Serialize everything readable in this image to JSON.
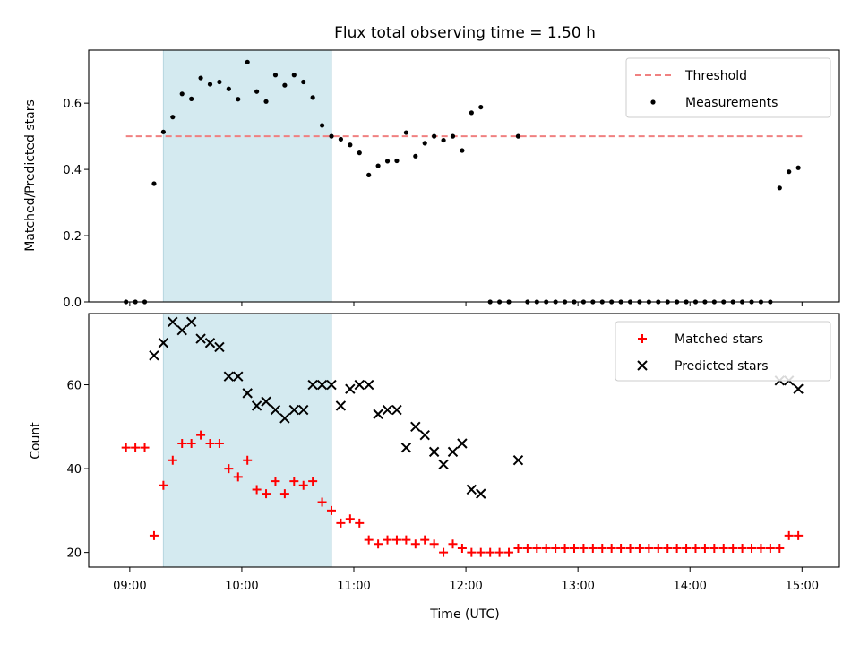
{
  "title": "Flux total observing time = 1.50 h",
  "chart_data": [
    {
      "type": "scatter",
      "ylabel": "Matched/Predicted stars",
      "ylim": [
        0,
        0.76
      ],
      "xlim": [
        "08:38",
        "15:20"
      ],
      "yticks": [
        0.0,
        0.2,
        0.4,
        0.6
      ],
      "ytick_labels": [
        "0.0",
        "0.2",
        "0.4",
        "0.6"
      ],
      "shaded_interval": {
        "from": "09:18",
        "to": "10:48",
        "color": "#d4eaf0"
      },
      "legend": {
        "placement": "top-right",
        "entries": [
          "Threshold",
          "Measurements"
        ]
      },
      "threshold": {
        "name": "Threshold",
        "value": 0.5,
        "from": "08:58",
        "to": "15:00",
        "color": "#f08080"
      },
      "series": [
        {
          "name": "Measurements",
          "color": "#000000",
          "points": [
            [
              "08:58",
              0
            ],
            [
              "09:03",
              0
            ],
            [
              "09:08",
              0
            ],
            [
              "09:13",
              0.357
            ],
            [
              "09:18",
              0.513
            ],
            [
              "09:23",
              0.558
            ],
            [
              "09:28",
              0.628
            ],
            [
              "09:33",
              0.613
            ],
            [
              "09:38",
              0.676
            ],
            [
              "09:43",
              0.657
            ],
            [
              "09:48",
              0.664
            ],
            [
              "09:53",
              0.643
            ],
            [
              "09:58",
              0.612
            ],
            [
              "10:03",
              0.724
            ],
            [
              "10:08",
              0.635
            ],
            [
              "10:13",
              0.605
            ],
            [
              "10:18",
              0.685
            ],
            [
              "10:23",
              0.654
            ],
            [
              "10:28",
              0.685
            ],
            [
              "10:33",
              0.664
            ],
            [
              "10:38",
              0.617
            ],
            [
              "10:43",
              0.533
            ],
            [
              "10:48",
              0.5
            ],
            [
              "10:53",
              0.491
            ],
            [
              "10:58",
              0.474
            ],
            [
              "11:03",
              0.45
            ],
            [
              "11:08",
              0.383
            ],
            [
              "11:13",
              0.411
            ],
            [
              "11:18",
              0.425
            ],
            [
              "11:23",
              0.426
            ],
            [
              "11:28",
              0.511
            ],
            [
              "11:33",
              0.44
            ],
            [
              "11:38",
              0.479
            ],
            [
              "11:43",
              0.5
            ],
            [
              "11:48",
              0.488
            ],
            [
              "11:53",
              0.5
            ],
            [
              "11:58",
              0.457
            ],
            [
              "12:03",
              0.571
            ],
            [
              "12:08",
              0.588
            ],
            [
              "12:13",
              0
            ],
            [
              "12:18",
              0
            ],
            [
              "12:23",
              0
            ],
            [
              "12:28",
              0.5
            ],
            [
              "12:33",
              0
            ],
            [
              "12:38",
              0
            ],
            [
              "12:43",
              0
            ],
            [
              "12:48",
              0
            ],
            [
              "12:53",
              0
            ],
            [
              "12:58",
              0
            ],
            [
              "13:03",
              0
            ],
            [
              "13:08",
              0
            ],
            [
              "13:13",
              0
            ],
            [
              "13:18",
              0
            ],
            [
              "13:23",
              0
            ],
            [
              "13:28",
              0
            ],
            [
              "13:33",
              0
            ],
            [
              "13:38",
              0
            ],
            [
              "13:43",
              0
            ],
            [
              "13:48",
              0
            ],
            [
              "13:53",
              0
            ],
            [
              "13:58",
              0
            ],
            [
              "14:03",
              0
            ],
            [
              "14:08",
              0
            ],
            [
              "14:13",
              0
            ],
            [
              "14:18",
              0
            ],
            [
              "14:23",
              0
            ],
            [
              "14:28",
              0
            ],
            [
              "14:33",
              0
            ],
            [
              "14:38",
              0
            ],
            [
              "14:43",
              0
            ],
            [
              "14:48",
              0.344
            ],
            [
              "14:53",
              0.393
            ],
            [
              "14:58",
              0.405
            ]
          ]
        }
      ]
    },
    {
      "type": "scatter",
      "xlabel": "Time (UTC)",
      "ylabel": "Count",
      "ylim": [
        16.5,
        77
      ],
      "xlim": [
        "08:38",
        "15:20"
      ],
      "yticks": [
        20,
        40,
        60
      ],
      "ytick_labels": [
        "20",
        "40",
        "60"
      ],
      "xticks": [
        "09:00",
        "10:00",
        "11:00",
        "12:00",
        "13:00",
        "14:00",
        "15:00"
      ],
      "xtick_labels": [
        "09:00",
        "10:00",
        "11:00",
        "12:00",
        "13:00",
        "14:00",
        "15:00"
      ],
      "shaded_interval": {
        "from": "09:18",
        "to": "10:48",
        "color": "#d4eaf0"
      },
      "legend": {
        "placement": "top-right",
        "entries": [
          "Matched stars",
          "Predicted stars"
        ]
      },
      "series": [
        {
          "name": "Matched stars",
          "marker": "plus",
          "color": "#ff0000",
          "points": [
            [
              "08:58",
              45
            ],
            [
              "09:03",
              45
            ],
            [
              "09:08",
              45
            ],
            [
              "09:13",
              24
            ],
            [
              "09:18",
              36
            ],
            [
              "09:23",
              42
            ],
            [
              "09:28",
              46
            ],
            [
              "09:33",
              46
            ],
            [
              "09:38",
              48
            ],
            [
              "09:43",
              46
            ],
            [
              "09:48",
              46
            ],
            [
              "09:53",
              40
            ],
            [
              "09:58",
              38
            ],
            [
              "10:03",
              42
            ],
            [
              "10:08",
              35
            ],
            [
              "10:13",
              34
            ],
            [
              "10:18",
              37
            ],
            [
              "10:23",
              34
            ],
            [
              "10:28",
              37
            ],
            [
              "10:33",
              36
            ],
            [
              "10:38",
              37
            ],
            [
              "10:43",
              32
            ],
            [
              "10:48",
              30
            ],
            [
              "10:53",
              27
            ],
            [
              "10:58",
              28
            ],
            [
              "11:03",
              27
            ],
            [
              "11:08",
              23
            ],
            [
              "11:13",
              22
            ],
            [
              "11:18",
              23
            ],
            [
              "11:23",
              23
            ],
            [
              "11:28",
              23
            ],
            [
              "11:33",
              22
            ],
            [
              "11:38",
              23
            ],
            [
              "11:43",
              22
            ],
            [
              "11:48",
              20
            ],
            [
              "11:53",
              22
            ],
            [
              "11:58",
              21
            ],
            [
              "12:03",
              20
            ],
            [
              "12:08",
              20
            ],
            [
              "12:13",
              20
            ],
            [
              "12:18",
              20
            ],
            [
              "12:23",
              20
            ],
            [
              "12:28",
              21
            ],
            [
              "12:33",
              21
            ],
            [
              "12:38",
              21
            ],
            [
              "12:43",
              21
            ],
            [
              "12:48",
              21
            ],
            [
              "12:53",
              21
            ],
            [
              "12:58",
              21
            ],
            [
              "13:03",
              21
            ],
            [
              "13:08",
              21
            ],
            [
              "13:13",
              21
            ],
            [
              "13:18",
              21
            ],
            [
              "13:23",
              21
            ],
            [
              "13:28",
              21
            ],
            [
              "13:33",
              21
            ],
            [
              "13:38",
              21
            ],
            [
              "13:43",
              21
            ],
            [
              "13:48",
              21
            ],
            [
              "13:53",
              21
            ],
            [
              "13:58",
              21
            ],
            [
              "14:03",
              21
            ],
            [
              "14:08",
              21
            ],
            [
              "14:13",
              21
            ],
            [
              "14:18",
              21
            ],
            [
              "14:23",
              21
            ],
            [
              "14:28",
              21
            ],
            [
              "14:33",
              21
            ],
            [
              "14:38",
              21
            ],
            [
              "14:43",
              21
            ],
            [
              "14:48",
              21
            ],
            [
              "14:53",
              24
            ],
            [
              "14:58",
              24
            ]
          ]
        },
        {
          "name": "Predicted stars",
          "marker": "x",
          "color": "#000000",
          "points": [
            [
              "09:13",
              67
            ],
            [
              "09:18",
              70
            ],
            [
              "09:23",
              75
            ],
            [
              "09:28",
              73
            ],
            [
              "09:33",
              75
            ],
            [
              "09:38",
              71
            ],
            [
              "09:43",
              70
            ],
            [
              "09:48",
              69
            ],
            [
              "09:53",
              62
            ],
            [
              "09:58",
              62
            ],
            [
              "10:03",
              58
            ],
            [
              "10:08",
              55
            ],
            [
              "10:13",
              56
            ],
            [
              "10:18",
              54
            ],
            [
              "10:23",
              52
            ],
            [
              "10:28",
              54
            ],
            [
              "10:33",
              54
            ],
            [
              "10:38",
              60
            ],
            [
              "10:43",
              60
            ],
            [
              "10:48",
              60
            ],
            [
              "10:53",
              55
            ],
            [
              "10:58",
              59
            ],
            [
              "11:03",
              60
            ],
            [
              "11:08",
              60
            ],
            [
              "11:13",
              53
            ],
            [
              "11:18",
              54
            ],
            [
              "11:23",
              54
            ],
            [
              "11:28",
              45
            ],
            [
              "11:33",
              50
            ],
            [
              "11:38",
              48
            ],
            [
              "11:43",
              44
            ],
            [
              "11:48",
              41
            ],
            [
              "11:53",
              44
            ],
            [
              "11:58",
              46
            ],
            [
              "12:03",
              35
            ],
            [
              "12:08",
              34
            ],
            [
              "12:28",
              42
            ],
            [
              "14:48",
              61
            ],
            [
              "14:53",
              61
            ],
            [
              "14:58",
              59
            ]
          ]
        }
      ]
    }
  ]
}
